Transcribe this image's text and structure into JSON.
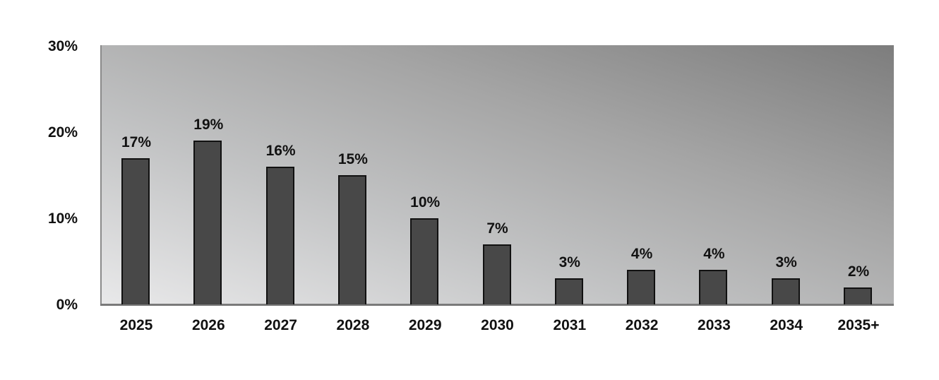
{
  "chart_data": {
    "type": "bar",
    "title": "",
    "xlabel": "",
    "ylabel": "",
    "categories": [
      "2025",
      "2026",
      "2027",
      "2028",
      "2029",
      "2030",
      "2031",
      "2032",
      "2033",
      "2034",
      "2035+"
    ],
    "values": [
      17,
      19,
      16,
      15,
      10,
      7,
      3,
      4,
      4,
      3,
      2
    ],
    "data_labels": [
      "17%",
      "19%",
      "16%",
      "15%",
      "10%",
      "7%",
      "3%",
      "4%",
      "4%",
      "3%",
      "2%"
    ],
    "ylim": [
      0,
      30
    ],
    "yticks": [
      "0%",
      "10%",
      "20%",
      "30%"
    ],
    "grid": false,
    "legend": null,
    "bar_color": "#484848",
    "background": "gradient gray"
  }
}
